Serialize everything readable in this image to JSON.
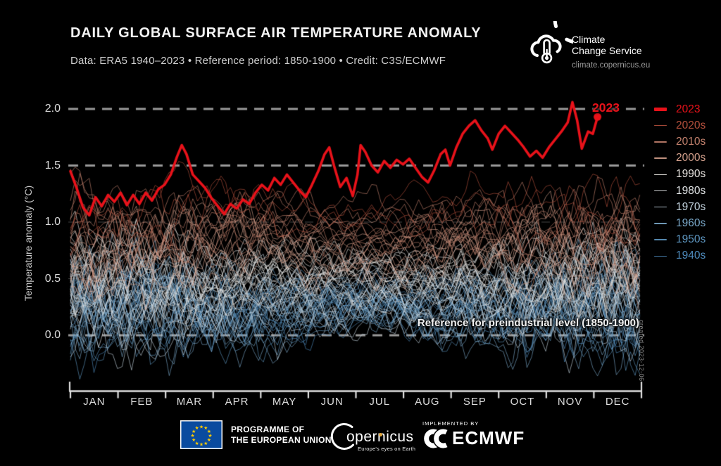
{
  "header": {
    "title": "DAILY GLOBAL SURFACE AIR TEMPERATURE ANOMALY",
    "subtitle": "Data: ERA5 1940–2023 • Reference period: 1850-1900 • Credit: C3S/ECMWF"
  },
  "logo": {
    "line1": "Climate",
    "line2": "Change Service",
    "url": "climate.copernicus.eu"
  },
  "chart_data": {
    "type": "line",
    "title": "Daily global surface air temperature anomaly",
    "ylabel": "Temperature anomaly (°C)",
    "xlabel": "",
    "months": [
      "JAN",
      "FEB",
      "MAR",
      "APR",
      "MAY",
      "JUN",
      "JUL",
      "AUG",
      "SEP",
      "OCT",
      "NOV",
      "DEC"
    ],
    "y_ticks": [
      {
        "v": 2.0,
        "label": "2.0"
      },
      {
        "v": 1.5,
        "label": "1.5"
      },
      {
        "v": 1.0,
        "label": "1.0"
      },
      {
        "v": 0.5,
        "label": "0.5"
      },
      {
        "v": 0.0,
        "label": "0.0"
      }
    ],
    "ylim": [
      -0.55,
      2.12
    ],
    "grid_major": [
      0.0,
      1.5,
      2.0
    ],
    "grid_minor": [
      0.5,
      1.0
    ],
    "annotation": "Reference for preindustrial level (1850-1900)",
    "line_label_2023": "2023",
    "created_label": "created 2023-12-06",
    "series_2023": {
      "name": "2023",
      "color": "#e8121a",
      "days": [
        1,
        5,
        9,
        13,
        17,
        21,
        25,
        29,
        33,
        37,
        41,
        45,
        49,
        53,
        57,
        61,
        65,
        69,
        72,
        75,
        79,
        83,
        87,
        91,
        95,
        99,
        103,
        107,
        111,
        115,
        119,
        123,
        127,
        131,
        135,
        139,
        143,
        147,
        151,
        155,
        159,
        163,
        166,
        169,
        173,
        177,
        181,
        184,
        186,
        189,
        193,
        197,
        201,
        205,
        209,
        213,
        217,
        221,
        225,
        229,
        233,
        237,
        240,
        243,
        247,
        251,
        255,
        259,
        263,
        267,
        270,
        274,
        278,
        282,
        286,
        290,
        294,
        298,
        302,
        306,
        310,
        314,
        318,
        321,
        324,
        327,
        331,
        334,
        337
      ],
      "values": [
        1.45,
        1.3,
        1.13,
        1.06,
        1.22,
        1.14,
        1.24,
        1.18,
        1.26,
        1.15,
        1.24,
        1.16,
        1.26,
        1.19,
        1.29,
        1.33,
        1.42,
        1.58,
        1.68,
        1.6,
        1.42,
        1.36,
        1.3,
        1.21,
        1.14,
        1.07,
        1.16,
        1.12,
        1.2,
        1.16,
        1.26,
        1.33,
        1.28,
        1.39,
        1.33,
        1.42,
        1.35,
        1.28,
        1.22,
        1.33,
        1.45,
        1.6,
        1.66,
        1.5,
        1.31,
        1.39,
        1.23,
        1.42,
        1.68,
        1.62,
        1.5,
        1.44,
        1.54,
        1.48,
        1.55,
        1.51,
        1.56,
        1.48,
        1.4,
        1.35,
        1.46,
        1.6,
        1.64,
        1.5,
        1.66,
        1.78,
        1.85,
        1.9,
        1.81,
        1.74,
        1.64,
        1.78,
        1.85,
        1.79,
        1.73,
        1.66,
        1.58,
        1.63,
        1.57,
        1.66,
        1.73,
        1.8,
        1.88,
        2.06,
        1.9,
        1.65,
        1.8,
        1.78,
        1.93
      ]
    },
    "background_decades": [
      {
        "label": "1940s",
        "start": 1940,
        "end": 1949,
        "color": "#4e8bbd",
        "mean": 0.28
      },
      {
        "label": "1950s",
        "start": 1950,
        "end": 1959,
        "color": "#5e97c2",
        "mean": 0.25
      },
      {
        "label": "1960s",
        "start": 1960,
        "end": 1969,
        "color": "#7aa8c9",
        "mean": 0.24
      },
      {
        "label": "1970s",
        "start": 1970,
        "end": 1979,
        "color": "#c3d3de",
        "mean": 0.3
      },
      {
        "label": "1980s",
        "start": 1980,
        "end": 1989,
        "color": "#e3e6e8",
        "mean": 0.45
      },
      {
        "label": "1990s",
        "start": 1990,
        "end": 1999,
        "color": "#e6e2de",
        "mean": 0.56
      },
      {
        "label": "2000s",
        "start": 2000,
        "end": 2009,
        "color": "#d4a08c",
        "mean": 0.75
      },
      {
        "label": "2010s",
        "start": 2010,
        "end": 2019,
        "color": "#c4826e",
        "mean": 0.95
      },
      {
        "label": "2020s",
        "start": 2020,
        "end": 2022,
        "color": "#b5503c",
        "mean": 1.13
      }
    ]
  },
  "legend": {
    "items": [
      {
        "label": "2023",
        "color": "#e8121a",
        "weight": "thick"
      },
      {
        "label": "2020s",
        "color": "#b5503c",
        "weight": "thin"
      },
      {
        "label": "2010s",
        "color": "#c4826e",
        "weight": "thin"
      },
      {
        "label": "2000s",
        "color": "#d4a08c",
        "weight": "thin"
      },
      {
        "label": "1990s",
        "color": "#e6e2de",
        "weight": "thin"
      },
      {
        "label": "1980s",
        "color": "#e3e6e8",
        "weight": "thin"
      },
      {
        "label": "1970s",
        "color": "#c3d3de",
        "weight": "thin"
      },
      {
        "label": "1960s",
        "color": "#7aa8c9",
        "weight": "thin"
      },
      {
        "label": "1950s",
        "color": "#5e97c2",
        "weight": "thin"
      },
      {
        "label": "1940s",
        "color": "#4e8bbd",
        "weight": "thin"
      }
    ]
  },
  "footer": {
    "programme_line1": "PROGRAMME OF",
    "programme_line2": "THE EUROPEAN UNION",
    "copernicus_text": "opernicus",
    "copernicus_tagline": "Europe's eyes on Earth",
    "implemented_by": "IMPLEMENTED BY",
    "ecmwf": "ECMWF",
    "eu_flag_blue": "#0a4b9f",
    "eu_star_gold": "#ffcc00"
  }
}
